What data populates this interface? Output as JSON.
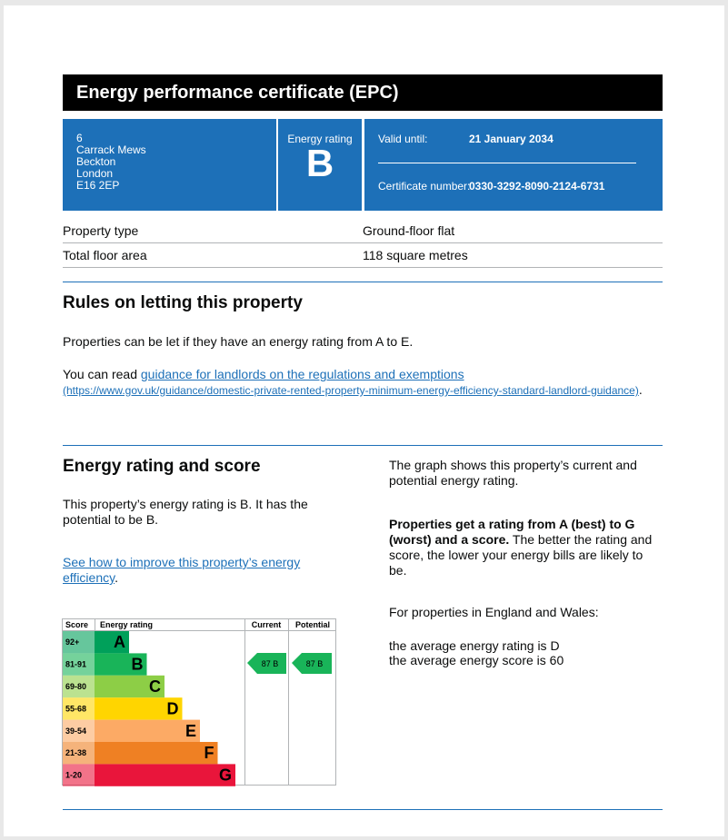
{
  "header": {
    "title": "Energy performance certificate (EPC)"
  },
  "address": [
    "6",
    "Carrack Mews",
    "Beckton",
    "London",
    "E16 2EP"
  ],
  "energy_rating": {
    "label": "Energy rating",
    "value": "B"
  },
  "valid_until": {
    "label": "Valid until:",
    "value": "21 January 2034"
  },
  "certificate_number": {
    "label": "Certificate number:",
    "value": "0330-3292-8090-2124-6731"
  },
  "property_table": {
    "rows": [
      [
        "Property type",
        "Ground-floor flat"
      ],
      [
        "Total floor area",
        "118 square metres"
      ]
    ]
  },
  "letting": {
    "heading": "Rules on letting this property",
    "paragraph": "Properties can be let if they have an energy rating from A to E.",
    "read_prefix": "You can read",
    "link": "guidance for landlords on the regulations and exemptions",
    "url": "(https://www.gov.uk/guidance/domestic-private-rented-property-minimum-energy-efficiency-standard-landlord-guidance)",
    "suffix": "."
  },
  "rating_section": {
    "heading": "Energy rating and score",
    "paragraph": "This property’s energy rating is B. It has the potential to be B.",
    "link": "See how to improve this property’s energy efficiency",
    "suffix": ".",
    "graph_note": "The graph shows this property’s current and potential energy rating.",
    "bold_note": "Properties get a rating from A (best) to G (worst) and a score.",
    "note": "The better the rating and score, the lower your energy bills are likely to be.",
    "region": "For properties in England and Wales:",
    "average_rating": "the average energy rating is D",
    "average_score": "the average energy score is 60"
  },
  "chart": {
    "headers": [
      "Score",
      "Energy rating",
      "Current",
      "Potential"
    ],
    "bands": [
      {
        "range": "92+",
        "letter": "A",
        "color": "#00a05a"
      },
      {
        "range": "81-91",
        "letter": "B",
        "color": "#19b459"
      },
      {
        "range": "69-80",
        "letter": "C",
        "color": "#8dce46"
      },
      {
        "range": "55-68",
        "letter": "D",
        "color": "#ffd500"
      },
      {
        "range": "39-54",
        "letter": "E",
        "color": "#fcaa65"
      },
      {
        "range": "21-38",
        "letter": "F",
        "color": "#ef8023"
      },
      {
        "range": "1-20",
        "letter": "G",
        "color": "#e9153b"
      }
    ],
    "current": "87 B",
    "potential": "87 B"
  }
}
